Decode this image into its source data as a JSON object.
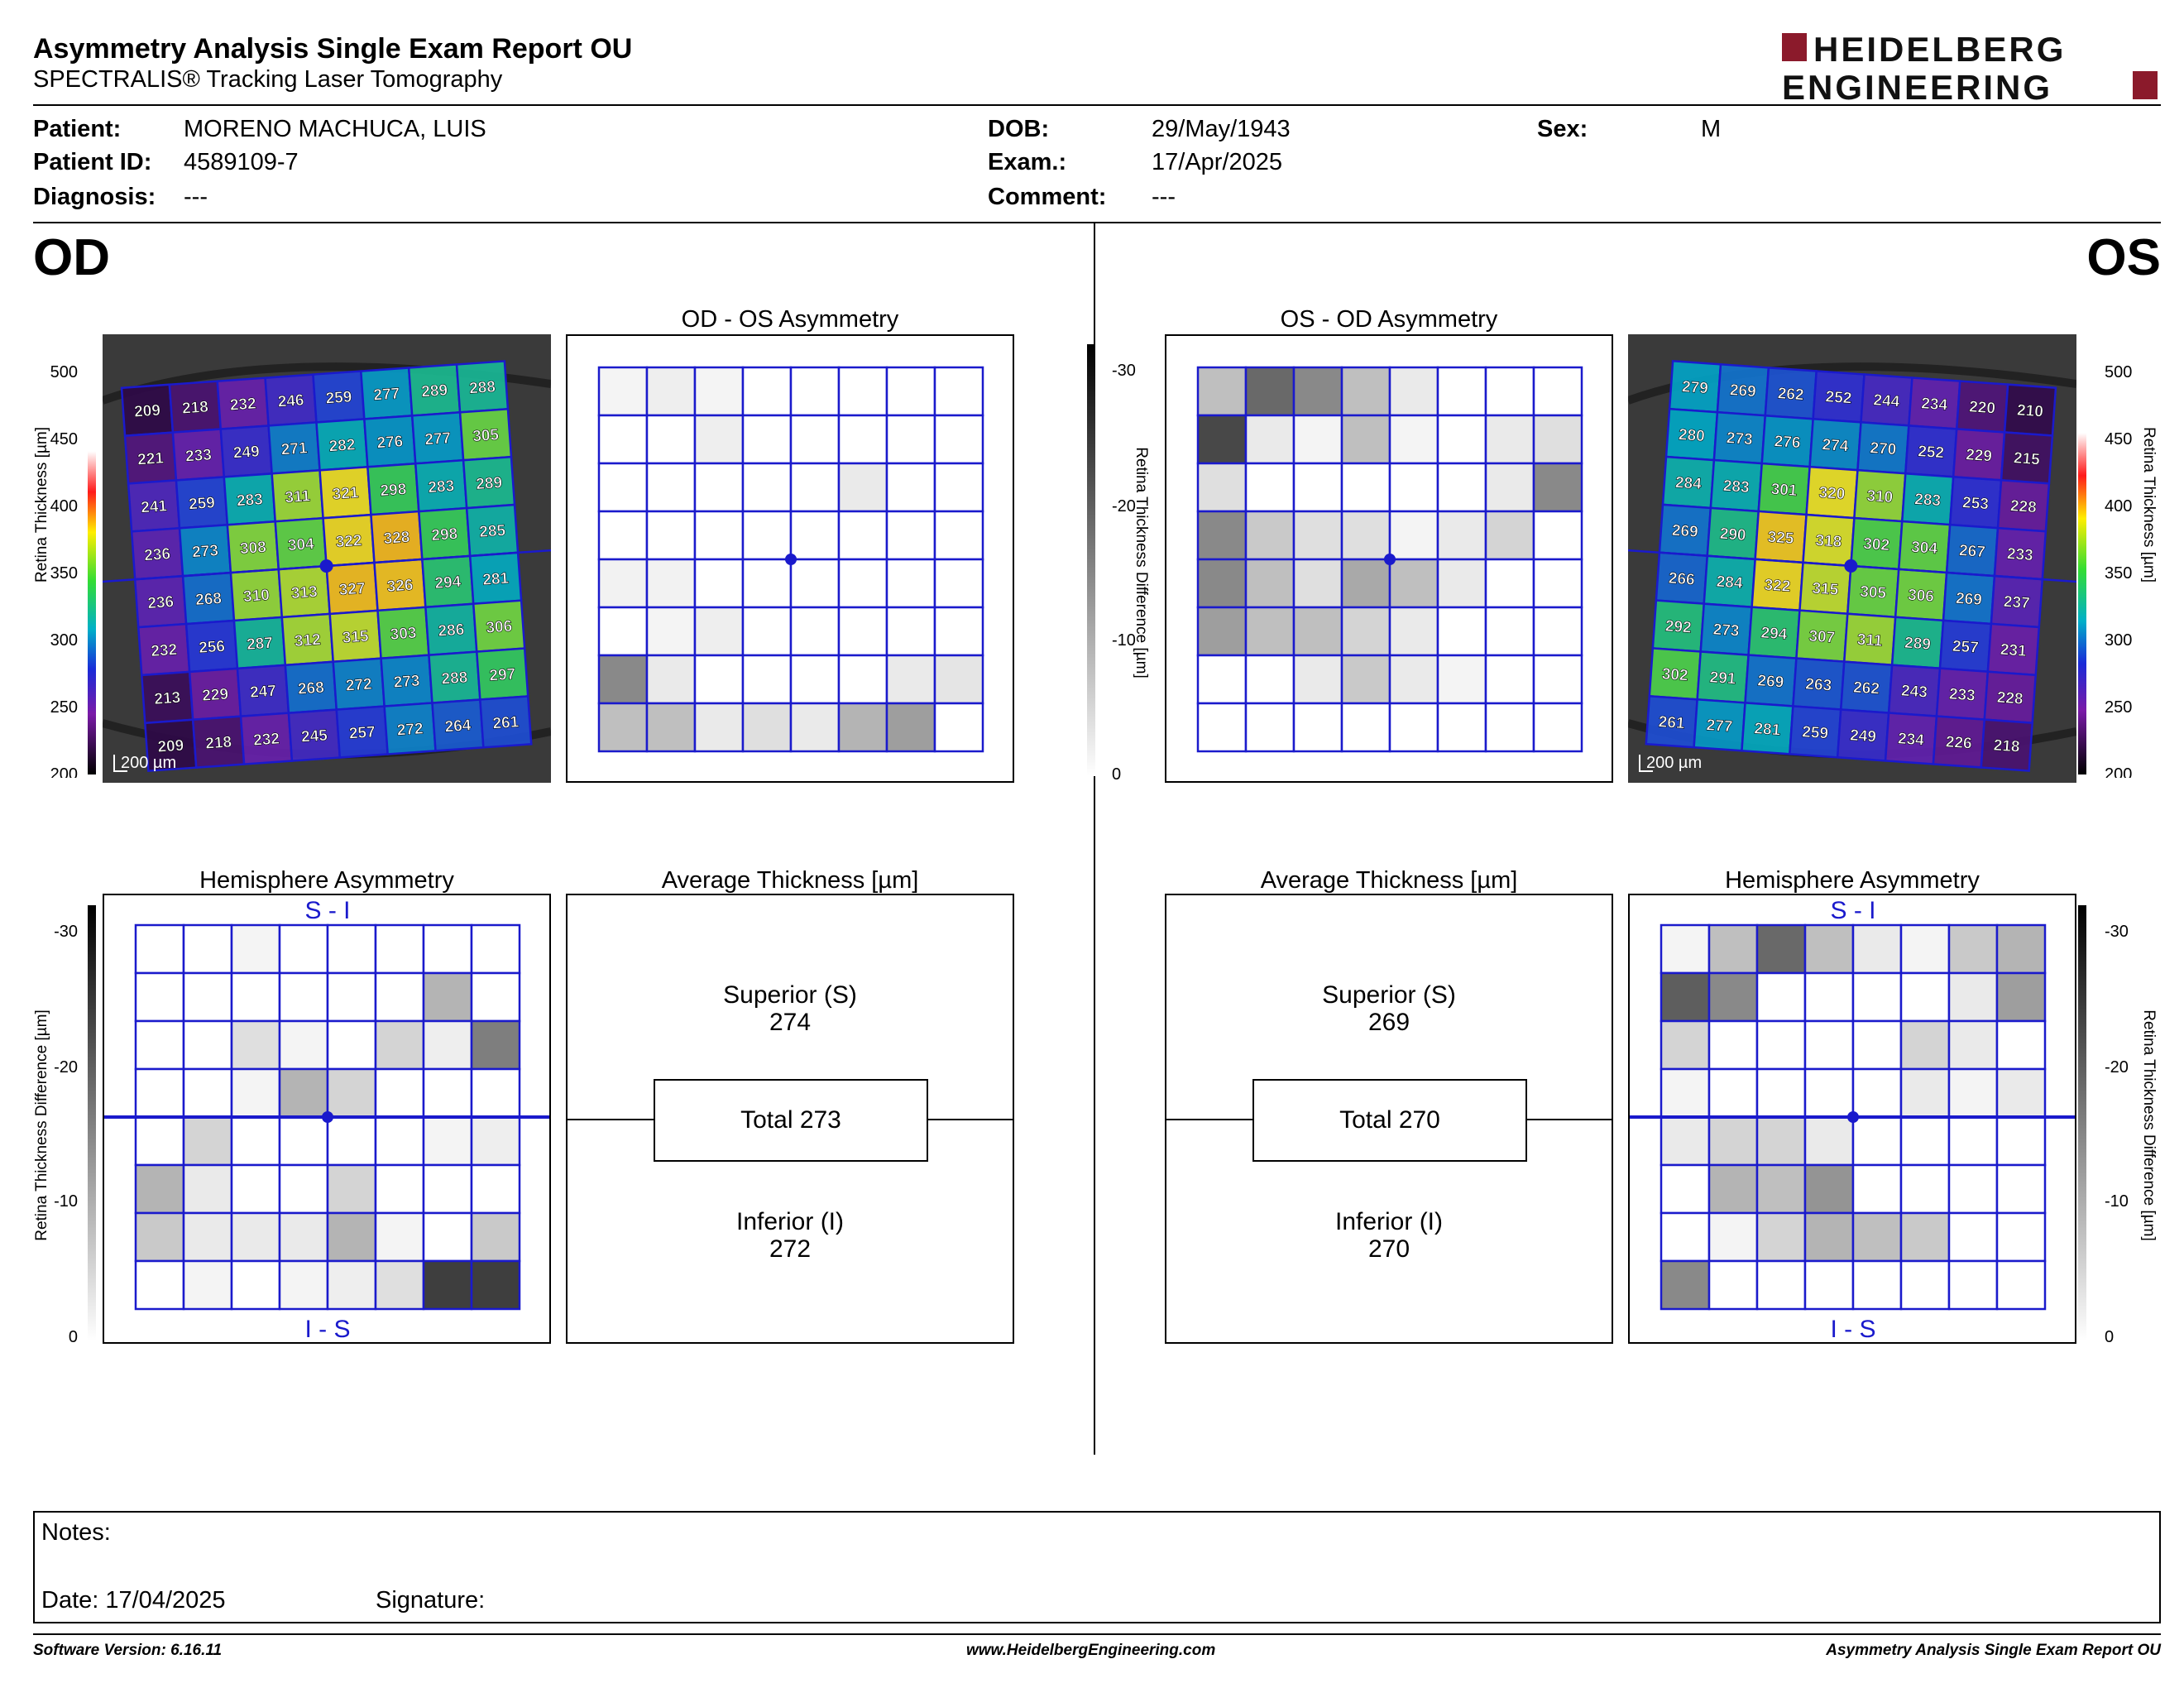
{
  "header": {
    "title": "Asymmetry Analysis Single Exam Report OU",
    "subtitle": "SPECTRALIS® Tracking Laser Tomography",
    "logo_line1": "HEIDELBERG",
    "logo_line2": "ENGINEERING"
  },
  "patient": {
    "patient_label": "Patient:",
    "patient_value": "MORENO MACHUCA, LUIS",
    "id_label": "Patient ID:",
    "id_value": "4589109-7",
    "diagnosis_label": "Diagnosis:",
    "diagnosis_value": "---",
    "dob_label": "DOB:",
    "dob_value": "29/May/1943",
    "exam_label": "Exam.:",
    "exam_value": "17/Apr/2025",
    "comment_label": "Comment:",
    "comment_value": "---",
    "sex_label": "Sex:",
    "sex_value": "M"
  },
  "od": {
    "label": "OD",
    "asym_title": "OD - OS Asymmetry",
    "hemi_title": "Hemisphere Asymmetry",
    "avg_title": "Average Thickness [µm]",
    "thickness_grid": [
      [
        209,
        218,
        232,
        246,
        259,
        277,
        289,
        288
      ],
      [
        221,
        233,
        249,
        271,
        282,
        276,
        277,
        305
      ],
      [
        241,
        259,
        283,
        311,
        321,
        298,
        283,
        289
      ],
      [
        236,
        273,
        308,
        304,
        322,
        328,
        298,
        285
      ],
      [
        236,
        268,
        310,
        313,
        327,
        326,
        294,
        281
      ],
      [
        232,
        256,
        287,
        312,
        315,
        303,
        286,
        306
      ],
      [
        213,
        229,
        247,
        268,
        272,
        273,
        288,
        297
      ],
      [
        209,
        218,
        232,
        245,
        257,
        272,
        264,
        261
      ]
    ],
    "asym_gray": [
      [
        0.05,
        0.08,
        0.05,
        0,
        0,
        0,
        0,
        0
      ],
      [
        0,
        0,
        0.08,
        0,
        0,
        0,
        0,
        0
      ],
      [
        0,
        0,
        0,
        0,
        0,
        0.1,
        0,
        0
      ],
      [
        0,
        0,
        0,
        0,
        0,
        0,
        0,
        0
      ],
      [
        0.06,
        0.06,
        0,
        0,
        0,
        0,
        0,
        0
      ],
      [
        0,
        0.05,
        0.08,
        0,
        0,
        0,
        0,
        0
      ],
      [
        0.55,
        0.1,
        0,
        0,
        0,
        0,
        0.1,
        0.12
      ],
      [
        0.3,
        0.3,
        0.1,
        0.15,
        0.1,
        0.35,
        0.45,
        0
      ]
    ],
    "hemi_gray": [
      [
        0,
        0,
        0.05,
        0,
        0,
        0,
        0,
        0
      ],
      [
        0,
        0,
        0,
        0,
        0,
        0,
        0.35,
        0
      ],
      [
        0,
        0,
        0.15,
        0.05,
        0,
        0.2,
        0.08,
        0.6
      ],
      [
        0,
        0,
        0.05,
        0.35,
        0.2,
        0,
        0,
        0
      ],
      [
        0,
        0.2,
        0,
        0,
        0,
        0,
        0.05,
        0.08
      ],
      [
        0.35,
        0.1,
        0,
        0,
        0.2,
        0,
        0,
        0
      ],
      [
        0.25,
        0.1,
        0.1,
        0.1,
        0.35,
        0.05,
        0,
        0.25
      ],
      [
        0,
        0.05,
        0,
        0.05,
        0.08,
        0.15,
        0.9,
        0.9
      ]
    ],
    "superior_label": "Superior (S)",
    "superior_value": "274",
    "total_label": "Total 273",
    "inferior_label": "Inferior (I)",
    "inferior_value": "272",
    "scale_label": "200 µm",
    "hemi_top_label": "S - I",
    "hemi_bottom_label": "I - S"
  },
  "os": {
    "label": "OS",
    "asym_title": "OS - OD Asymmetry",
    "hemi_title": "Hemisphere Asymmetry",
    "avg_title": "Average Thickness [µm]",
    "thickness_grid": [
      [
        279,
        269,
        262,
        252,
        244,
        234,
        220,
        210
      ],
      [
        280,
        273,
        276,
        274,
        270,
        252,
        229,
        215
      ],
      [
        284,
        283,
        301,
        320,
        310,
        283,
        253,
        228
      ],
      [
        269,
        290,
        325,
        318,
        302,
        304,
        267,
        233
      ],
      [
        266,
        284,
        322,
        315,
        305,
        306,
        269,
        237
      ],
      [
        292,
        273,
        294,
        307,
        311,
        289,
        257,
        231
      ],
      [
        302,
        291,
        269,
        263,
        262,
        243,
        233,
        228
      ],
      [
        261,
        277,
        281,
        259,
        249,
        234,
        226,
        218
      ]
    ],
    "asym_gray": [
      [
        0.3,
        0.7,
        0.55,
        0.3,
        0.1,
        0,
        0,
        0
      ],
      [
        0.85,
        0.1,
        0.05,
        0.3,
        0.05,
        0,
        0.1,
        0.15
      ],
      [
        0.15,
        0,
        0,
        0,
        0,
        0,
        0.1,
        0.55
      ],
      [
        0.55,
        0.25,
        0.15,
        0.15,
        0.05,
        0.1,
        0.2,
        0
      ],
      [
        0.55,
        0.3,
        0.15,
        0.4,
        0.3,
        0.1,
        0,
        0
      ],
      [
        0.45,
        0.3,
        0.3,
        0.2,
        0.1,
        0,
        0,
        0
      ],
      [
        0,
        0,
        0.1,
        0.25,
        0.1,
        0.05,
        0,
        0
      ],
      [
        0,
        0,
        0,
        0,
        0,
        0,
        0,
        0
      ]
    ],
    "hemi_gray": [
      [
        0.05,
        0.3,
        0.7,
        0.3,
        0.1,
        0.05,
        0.25,
        0.35
      ],
      [
        0.75,
        0.55,
        0,
        0,
        0,
        0,
        0.1,
        0.45
      ],
      [
        0.2,
        0,
        0,
        0,
        0,
        0.2,
        0.1,
        0
      ],
      [
        0.05,
        0,
        0,
        0,
        0,
        0.1,
        0.05,
        0.1
      ],
      [
        0.1,
        0.2,
        0.2,
        0.1,
        0,
        0,
        0,
        0
      ],
      [
        0,
        0.35,
        0.3,
        0.5,
        0,
        0,
        0,
        0
      ],
      [
        0,
        0.05,
        0.2,
        0.35,
        0.3,
        0.25,
        0,
        0
      ],
      [
        0.55,
        0,
        0,
        0,
        0,
        0,
        0,
        0
      ]
    ],
    "superior_label": "Superior (S)",
    "superior_value": "269",
    "total_label": "Total 270",
    "inferior_label": "Inferior (I)",
    "inferior_value": "270",
    "scale_label": "200 µm",
    "hemi_top_label": "S - I",
    "hemi_bottom_label": "I - S"
  },
  "thickness_scale": {
    "title": "Retina Thickness [µm]",
    "ticks": [
      "500",
      "450",
      "400",
      "350",
      "300",
      "250",
      "200"
    ]
  },
  "difference_scale": {
    "title": "Retina Thickness Difference [µm]",
    "ticks": [
      "-30",
      "-20",
      "-10",
      "0"
    ]
  },
  "notes": {
    "notes_label": "Notes:",
    "date_label": "Date: 17/04/2025",
    "signature_label": "Signature:"
  },
  "footer": {
    "version": "Software Version: 6.16.11",
    "website": "www.HeidelbergEngineering.com",
    "report_name": "Asymmetry Analysis Single Exam Report OU"
  },
  "colors": {
    "grid_blue": "#1a1acc",
    "logo_red": "#8b1a2b",
    "text": "#000000"
  }
}
